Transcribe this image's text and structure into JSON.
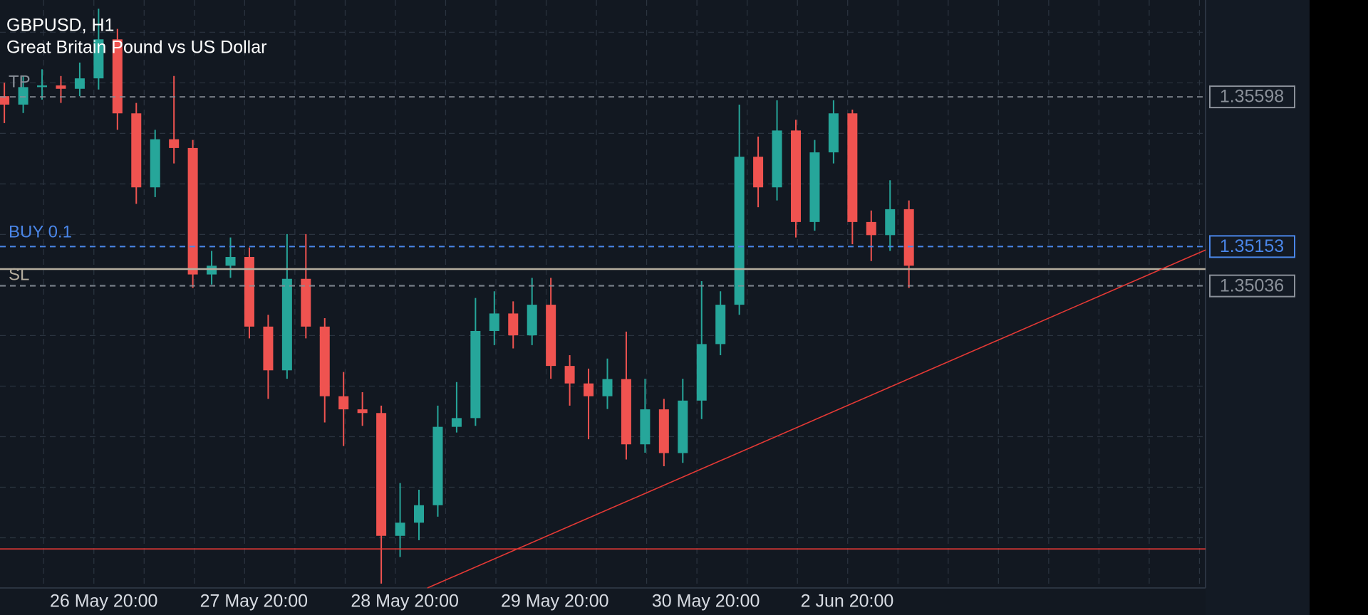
{
  "header": {
    "title": "GBPUSD, H1",
    "subtitle": "Great Britain Pound vs US Dollar"
  },
  "chart": {
    "ylim": [
      1.34138,
      1.35886
    ],
    "candles": [
      [
        1.356,
        1.3564,
        1.3552,
        1.35575
      ],
      [
        1.35575,
        1.3566,
        1.3555,
        1.35627
      ],
      [
        1.35627,
        1.3568,
        1.3559,
        1.35632
      ],
      [
        1.35632,
        1.3566,
        1.3558,
        1.35622
      ],
      [
        1.35622,
        1.357,
        1.356,
        1.35653
      ],
      [
        1.35653,
        1.3586,
        1.3562,
        1.35769
      ],
      [
        1.35769,
        1.358,
        1.355,
        1.35549
      ],
      [
        1.35549,
        1.3558,
        1.3528,
        1.35329
      ],
      [
        1.35329,
        1.355,
        1.353,
        1.35472
      ],
      [
        1.35472,
        1.3566,
        1.354,
        1.35446
      ],
      [
        1.35446,
        1.3547,
        1.3503,
        1.3507
      ],
      [
        1.3507,
        1.3514,
        1.3504,
        1.35096
      ],
      [
        1.35096,
        1.3518,
        1.3506,
        1.35122
      ],
      [
        1.35122,
        1.3515,
        1.3488,
        1.34915
      ],
      [
        1.34915,
        1.3495,
        1.347,
        1.34785
      ],
      [
        1.34785,
        1.3519,
        1.3476,
        1.35057
      ],
      [
        1.35057,
        1.3519,
        1.3488,
        1.34915
      ],
      [
        1.34915,
        1.3494,
        1.3463,
        1.34708
      ],
      [
        1.34708,
        1.3478,
        1.3456,
        1.34669
      ],
      [
        1.34669,
        1.3472,
        1.3462,
        1.34658
      ],
      [
        1.34658,
        1.3468,
        1.34151,
        1.34293
      ],
      [
        1.34293,
        1.3445,
        1.3423,
        1.34332
      ],
      [
        1.34332,
        1.3443,
        1.3428,
        1.34384
      ],
      [
        1.34384,
        1.3468,
        1.3435,
        1.34617
      ],
      [
        1.34617,
        1.3475,
        1.346,
        1.34643
      ],
      [
        1.34643,
        1.35,
        1.3462,
        1.34902
      ],
      [
        1.34902,
        1.3502,
        1.3486,
        1.34954
      ],
      [
        1.34954,
        1.3499,
        1.3485,
        1.34889
      ],
      [
        1.34889,
        1.3506,
        1.3486,
        1.3498
      ],
      [
        1.3498,
        1.3506,
        1.3476,
        1.34798
      ],
      [
        1.34798,
        1.3483,
        1.3468,
        1.34746
      ],
      [
        1.34746,
        1.3479,
        1.3458,
        1.34708
      ],
      [
        1.34708,
        1.3482,
        1.3467,
        1.34759
      ],
      [
        1.34759,
        1.349,
        1.3452,
        1.34565
      ],
      [
        1.34565,
        1.3476,
        1.3454,
        1.34669
      ],
      [
        1.34669,
        1.347,
        1.345,
        1.34539
      ],
      [
        1.34539,
        1.3476,
        1.3451,
        1.34695
      ],
      [
        1.34695,
        1.3505,
        1.3464,
        1.34863
      ],
      [
        1.34863,
        1.3502,
        1.3483,
        1.3498
      ],
      [
        1.3498,
        1.35575,
        1.3495,
        1.3542
      ],
      [
        1.3542,
        1.3548,
        1.3527,
        1.35329
      ],
      [
        1.35329,
        1.35588,
        1.3529,
        1.35498
      ],
      [
        1.35498,
        1.3553,
        1.3518,
        1.35226
      ],
      [
        1.35226,
        1.3547,
        1.352,
        1.35433
      ],
      [
        1.35433,
        1.35588,
        1.354,
        1.35549
      ],
      [
        1.35549,
        1.3556,
        1.3516,
        1.35226
      ],
      [
        1.35226,
        1.3526,
        1.3511,
        1.35187
      ],
      [
        1.35187,
        1.3535,
        1.3514,
        1.35264
      ],
      [
        1.35264,
        1.3529,
        1.3503,
        1.35096
      ]
    ],
    "up_color": "#26a69a",
    "down_color": "#ef5350",
    "x_labels": [
      "26 May 20:00",
      "27 May 20:00",
      "28 May 20:00",
      "29 May 20:00",
      "30 May 20:00",
      "2 Jun 20:00"
    ],
    "tp": {
      "label": "TP",
      "price": 1.35598
    },
    "buy": {
      "label": "BUY 0.1",
      "price": 1.35153
    },
    "sl": {
      "label": "SL",
      "price": 1.35086
    },
    "level": {
      "price": 1.35036
    },
    "red_level": {
      "price": 1.34254
    },
    "trendline": {
      "x": [
        22.45,
        63.75
      ],
      "y": [
        1.34138,
        1.35143
      ]
    }
  }
}
